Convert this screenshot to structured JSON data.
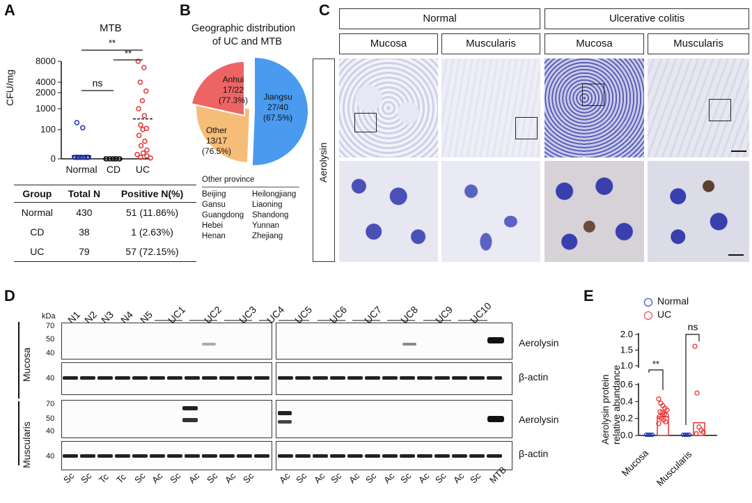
{
  "panels": {
    "a": "A",
    "b": "B",
    "c": "C",
    "d": "D",
    "e": "E"
  },
  "panel_a": {
    "title": "MTB",
    "ylabel": "CFU/mg",
    "yticks": [
      "8000",
      "4000",
      "2000",
      "1000",
      "100",
      "0"
    ],
    "groups": [
      "Normal",
      "CD",
      "UC"
    ],
    "sig": [
      "**",
      "**",
      "ns"
    ],
    "table": {
      "headers": [
        "Group",
        "Total N",
        "Positive N(%)"
      ],
      "rows": [
        [
          "Normal",
          "430",
          "51 (11.86%)"
        ],
        [
          "CD",
          "38",
          "1 (2.63%)"
        ],
        [
          "UC",
          "79",
          "57 (72.15%)"
        ]
      ]
    },
    "colors": {
      "normal": "#1f2fb5",
      "cd": "#111111",
      "uc": "#e53030"
    },
    "chart_data": {
      "type": "scatter",
      "title": "MTB",
      "ylabel": "CFU/mg",
      "categories": [
        "Normal",
        "CD",
        "UC"
      ],
      "y_scale": "segmented",
      "series": [
        {
          "name": "Normal",
          "values": [
            400,
            180,
            5,
            5,
            5,
            5,
            5,
            5,
            5,
            5,
            5,
            5,
            5,
            5
          ]
        },
        {
          "name": "CD",
          "values": [
            0,
            0,
            0,
            0,
            0,
            0,
            0,
            0,
            0,
            0
          ]
        },
        {
          "name": "UC",
          "values": [
            8000,
            6800,
            4000,
            2300,
            1500,
            1000,
            700,
            300,
            150,
            100,
            80,
            60,
            45,
            30,
            20,
            15,
            10,
            5,
            3
          ]
        }
      ]
    }
  },
  "panel_b": {
    "title_line1": "Geographic distribution",
    "title_line2": "of UC and MTB",
    "slices": [
      {
        "name": "Jiangsu",
        "ratio": "27/40",
        "pct": "(67.5%)",
        "color": "#4a9bf0"
      },
      {
        "name": "Anhui",
        "ratio": "17/22",
        "pct": "(77.3%)",
        "color": "#f6bd78"
      },
      {
        "name": "Other",
        "ratio": "13/17",
        "pct": "(76.5%)",
        "color": "#ee6464"
      }
    ],
    "chart_data": {
      "type": "pie",
      "categories": [
        "Jiangsu",
        "Anhui",
        "Other"
      ],
      "values": [
        40,
        22,
        17
      ],
      "labels": [
        "27/40 (67.5%)",
        "17/22 (77.3%)",
        "13/17 (76.5%)"
      ]
    },
    "other_title": "Other province",
    "other_col1": [
      "Beijing",
      "Gansu",
      "Guangdong",
      "Hebei",
      "Henan"
    ],
    "other_col2": [
      "Heilongjiang",
      "Liaoning",
      "Shandong",
      "Yunnan",
      "Zhejiang"
    ]
  },
  "panel_c": {
    "normal": "Normal",
    "uc": "Ulcerative colitis",
    "mucosa": "Mucosa",
    "muscularis": "Muscularis",
    "row_label": "Aerolysin"
  },
  "panel_d": {
    "kda": "kDa",
    "lanes_left": [
      "N1",
      "N2",
      "N3",
      "N4",
      "N5",
      "UC1",
      "UC2",
      "UC3",
      "UC4"
    ],
    "lanes_right": [
      "UC5",
      "UC6",
      "UC7",
      "UC8",
      "UC9",
      "UC10"
    ],
    "side_mucosa": "Mucosa",
    "side_muscularis": "Muscularis",
    "markers_aero": [
      "70",
      "50",
      "40"
    ],
    "markers_actin": [
      "40"
    ],
    "label_aero": "Aerolysin",
    "label_actin": "β-actin",
    "bottom_left": [
      "Sc",
      "Sc",
      "Tc",
      "Tc",
      "Sc",
      "Ac",
      "Sc",
      "Ac",
      "Sc",
      "Ac",
      "Sc"
    ],
    "bottom_right": [
      "Ac",
      "Sc",
      "Ac",
      "Sc",
      "Ac",
      "Sc",
      "Ac",
      "Sc",
      "Ac",
      "Sc",
      "Ac",
      "Sc",
      "MTB"
    ]
  },
  "panel_e": {
    "legend": [
      "Normal",
      "UC"
    ],
    "ylabel_line1": "Aerolysin protein",
    "ylabel_line2": "relative abundance",
    "yticks_top": [
      "2.0",
      "1.5",
      "1.0"
    ],
    "yticks_bottom": [
      "0.6",
      "0.4",
      "0.2",
      "0.0"
    ],
    "categories": [
      "Mucosa",
      "Muscularis"
    ],
    "sig": [
      "**",
      "ns"
    ],
    "chart_data": {
      "type": "bar",
      "categories": [
        "Mucosa",
        "Muscularis"
      ],
      "series": [
        {
          "name": "Normal",
          "values": [
            0.0,
            0.0
          ]
        },
        {
          "name": "UC",
          "values": [
            0.22,
            0.15
          ]
        }
      ],
      "points_uc": [
        [
          0.43,
          0.38,
          0.35,
          0.32,
          0.3,
          0.28,
          0.27,
          0.25,
          0.24,
          0.22,
          0.2,
          0.18,
          0.16,
          0.14
        ],
        [
          1.62,
          0.5,
          0.1,
          0.06,
          0.04,
          0.02
        ]
      ],
      "ylim": [
        0,
        2.0
      ]
    }
  }
}
